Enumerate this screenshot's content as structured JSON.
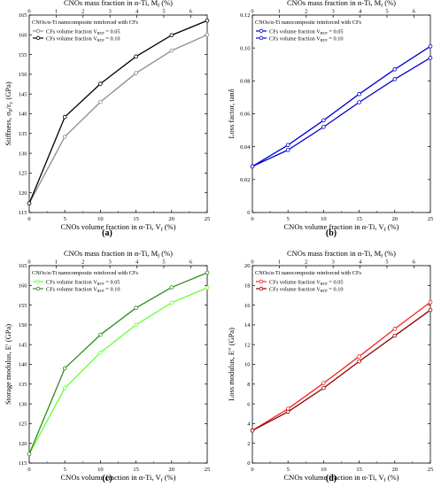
{
  "chart_data": [
    {
      "type": "line",
      "panel_label": "(a)",
      "top_axis_label": "CNOs mass fraction in α-Ti, M",
      "top_axis_subscript": "f",
      "top_axis_unit": " (%)",
      "xlabel": "CNOs volume fraction in α-Ti, V",
      "xlabel_subscript": "f",
      "xlabel_unit": " (%)",
      "ylabel": "Stiffness, σ",
      "ylabel_sub1": "0",
      "ylabel_mid": "/ε",
      "ylabel_sub2": "c",
      "ylabel_unit": " (GPa)",
      "xlim": [
        0,
        25
      ],
      "ylim": [
        115,
        165
      ],
      "x_ticks": [
        0,
        5,
        10,
        15,
        20,
        25
      ],
      "y_ticks": [
        115,
        120,
        125,
        130,
        135,
        140,
        145,
        150,
        155,
        160,
        165
      ],
      "top_ticks": [
        0,
        1,
        2,
        3,
        4,
        5,
        6
      ],
      "top_ticks_x": [
        0,
        3.78,
        7.56,
        11.34,
        15.12,
        18.9,
        22.68
      ],
      "legend_title": "CNOs/α-Ti nanocomposite reinforced with CFs",
      "series": [
        {
          "name": "CFs volume fraction V",
          "name_sub": "RTF",
          "name_value": " = 0.05",
          "color": "#8c8c8c",
          "x": [
            0,
            5,
            10,
            15,
            20,
            25
          ],
          "values": [
            117.3,
            134.2,
            143.0,
            150.3,
            156.0,
            160.0
          ]
        },
        {
          "name": "CFs volume fraction V",
          "name_sub": "RTF",
          "name_value": " = 0.10",
          "color": "#000000",
          "x": [
            0,
            5,
            10,
            15,
            20,
            25
          ],
          "values": [
            117.3,
            139.2,
            147.6,
            154.5,
            159.9,
            163.6
          ]
        }
      ]
    },
    {
      "type": "line",
      "panel_label": "(b)",
      "top_axis_label": "CNOs mass fraction in α-Ti, M",
      "top_axis_subscript": "f",
      "top_axis_unit": " (%)",
      "xlabel": "CNOs volume fraction in α-Ti, V",
      "xlabel_subscript": "f",
      "xlabel_unit": " (%)",
      "ylabel": "Loss factor, tanδ",
      "xlim": [
        0,
        25
      ],
      "ylim": [
        0,
        0.12
      ],
      "x_ticks": [
        0,
        5,
        10,
        15,
        20,
        25
      ],
      "y_ticks": [
        "0",
        "0.02",
        "0.04",
        "0.06",
        "0.08",
        "0.10",
        "0.12"
      ],
      "y_tick_values": [
        0,
        0.02,
        0.04,
        0.06,
        0.08,
        0.1,
        0.12
      ],
      "top_ticks": [
        0,
        1,
        2,
        3,
        4,
        5,
        6
      ],
      "top_ticks_x": [
        0,
        3.78,
        7.56,
        11.34,
        15.12,
        18.9,
        22.68
      ],
      "legend_title": "CNOs/α-Ti nanocomposite reinforced with CFs",
      "series": [
        {
          "name": "CFs volume fraction V",
          "name_sub": "RTF",
          "name_value": " = 0.05",
          "color": "#0000cc",
          "x": [
            0,
            5,
            10,
            15,
            20,
            25
          ],
          "values": [
            0.028,
            0.041,
            0.056,
            0.072,
            0.087,
            0.101
          ]
        },
        {
          "name": "CFs volume fraction V",
          "name_sub": "RTF",
          "name_value": " = 0.10",
          "color": "#0000cc",
          "x": [
            0,
            5,
            10,
            15,
            20,
            25
          ],
          "values": [
            0.028,
            0.038,
            0.052,
            0.067,
            0.081,
            0.094
          ]
        }
      ]
    },
    {
      "type": "line",
      "panel_label": "(c)",
      "top_axis_label": "CNOs mass fraction in α-Ti, M",
      "top_axis_subscript": "f",
      "top_axis_unit": " (%)",
      "xlabel": "CNOs volume fraction in α-Ti, V",
      "xlabel_subscript": "f",
      "xlabel_unit": " (%)",
      "ylabel": "Storage modulus, E′ (GPa)",
      "xlim": [
        0,
        25
      ],
      "ylim": [
        115,
        165
      ],
      "x_ticks": [
        0,
        5,
        10,
        15,
        20,
        25
      ],
      "y_ticks": [
        115,
        120,
        125,
        130,
        135,
        140,
        145,
        150,
        155,
        160,
        165
      ],
      "top_ticks": [
        0,
        1,
        2,
        3,
        4,
        5,
        6
      ],
      "top_ticks_x": [
        0,
        3.78,
        7.56,
        11.34,
        15.12,
        18.9,
        22.68
      ],
      "legend_title": "CNOs/α-Ti nanocomposite reinforced with CFs",
      "series": [
        {
          "name": "CFs volume fraction V",
          "name_sub": "RTF",
          "name_value": " = 0.05",
          "color": "#66ff33",
          "x": [
            0,
            5,
            10,
            15,
            20,
            25
          ],
          "values": [
            117.3,
            134.0,
            143.0,
            150.0,
            155.6,
            159.4
          ]
        },
        {
          "name": "CFs volume fraction V",
          "name_sub": "RTF",
          "name_value": " = 0.10",
          "color": "#2e8b1e",
          "x": [
            0,
            5,
            10,
            15,
            20,
            25
          ],
          "values": [
            117.3,
            139.0,
            147.5,
            154.3,
            159.5,
            163.2
          ]
        }
      ]
    },
    {
      "type": "line",
      "panel_label": "(d)",
      "top_axis_label": "CNOs mass fraction in α-Ti, M",
      "top_axis_subscript": "f",
      "top_axis_unit": " (%)",
      "xlabel": "CNOs volume fraction in α-Ti, V",
      "xlabel_subscript": "f",
      "xlabel_unit": " (%)",
      "ylabel": "Loss modulus, E″ (GPa)",
      "xlim": [
        0,
        25
      ],
      "ylim": [
        0,
        20
      ],
      "x_ticks": [
        0,
        5,
        10,
        15,
        20,
        25
      ],
      "y_ticks": [
        0,
        2,
        4,
        6,
        8,
        10,
        12,
        14,
        16,
        18,
        20
      ],
      "top_ticks": [
        0,
        1,
        2,
        3,
        4,
        5,
        6
      ],
      "top_ticks_x": [
        0,
        3.78,
        7.56,
        11.34,
        15.12,
        18.9,
        22.68
      ],
      "legend_title": "CNOs/α-Ti nanocomposite reinforced with CFs",
      "series": [
        {
          "name": "CFs volume fraction V",
          "name_sub": "RTF",
          "name_value": " = 0.05",
          "color": "#ff2020",
          "x": [
            0,
            5,
            10,
            15,
            20,
            25
          ],
          "values": [
            3.3,
            5.5,
            8.1,
            10.8,
            13.6,
            16.3
          ]
        },
        {
          "name": "CFs volume fraction V",
          "name_sub": "RTF",
          "name_value": " = 0.10",
          "color": "#8b0000",
          "x": [
            0,
            5,
            10,
            15,
            20,
            25
          ],
          "values": [
            3.3,
            5.2,
            7.6,
            10.3,
            12.9,
            15.5
          ]
        }
      ]
    }
  ]
}
